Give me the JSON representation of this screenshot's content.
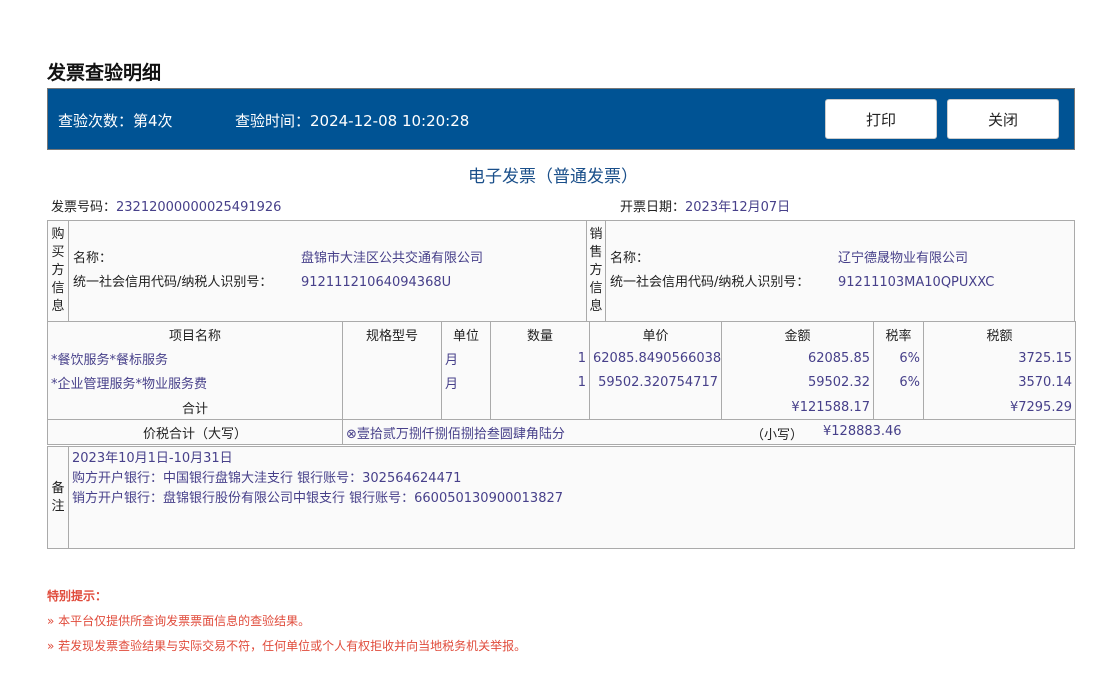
{
  "page_title": "发票查验明细",
  "header": {
    "check_count": "查验次数：第4次",
    "check_time": "查验时间：2024-12-08 10:20:28",
    "print_label": "打印",
    "close_label": "关闭",
    "color": "#005394"
  },
  "invoice": {
    "type": "电子发票（普通发票）",
    "number_label": "发票号码：",
    "number": "23212000000025491926",
    "date_label": "开票日期：",
    "date": "2023年12月07日",
    "buyer": {
      "section": "购买方信息",
      "name_label": "名称：",
      "name": "盘锦市大洼区公共交通有限公司",
      "tax_label": "统一社会信用代码/纳税人识别号：",
      "tax_id": "91211121064094368U"
    },
    "seller": {
      "section": "销售方信息",
      "name_label": "名称：",
      "name": "辽宁德晟物业有限公司",
      "tax_label": "统一社会信用代码/纳税人识别号：",
      "tax_id": "91211103MA10QPUXXC"
    },
    "columns": [
      "项目名称",
      "规格型号",
      "单位",
      "数量",
      "单价",
      "金额",
      "税率",
      "税额"
    ],
    "items": [
      {
        "name": "*餐饮服务*餐标服务",
        "spec": "",
        "unit": "月",
        "qty": "1",
        "price": "62085.8490566038",
        "amount": "62085.85",
        "rate": "6%",
        "tax": "3725.15"
      },
      {
        "name": "*企业管理服务*物业服务费",
        "spec": "",
        "unit": "月",
        "qty": "1",
        "price": "59502.320754717",
        "amount": "59502.32",
        "rate": "6%",
        "tax": "3570.14"
      }
    ],
    "total_label": "合计",
    "total_amount": "¥121588.17",
    "total_tax": "¥7295.29",
    "grand_label": "价税合计（大写）",
    "grand_words": "⊗壹拾贰万捌仟捌佰捌拾叁圆肆角陆分",
    "small_label": "（小写）",
    "grand_small": "¥128883.46",
    "remark_label": "备注",
    "remarks": [
      "2023年10月1日-10月31日",
      "购方开户银行：中国银行盘锦大洼支行 银行账号：302564624471",
      "销方开户银行：盘锦银行股份有限公司中银支行 银行账号：660050130900013827"
    ]
  },
  "tips": {
    "heading": "特别提示：",
    "items": [
      "»  本平台仅提供所查询发票票面信息的查验结果。",
      "»  若发现发票查验结果与实际交易不符，任何单位或个人有权拒收并向当地税务机关举报。"
    ]
  }
}
